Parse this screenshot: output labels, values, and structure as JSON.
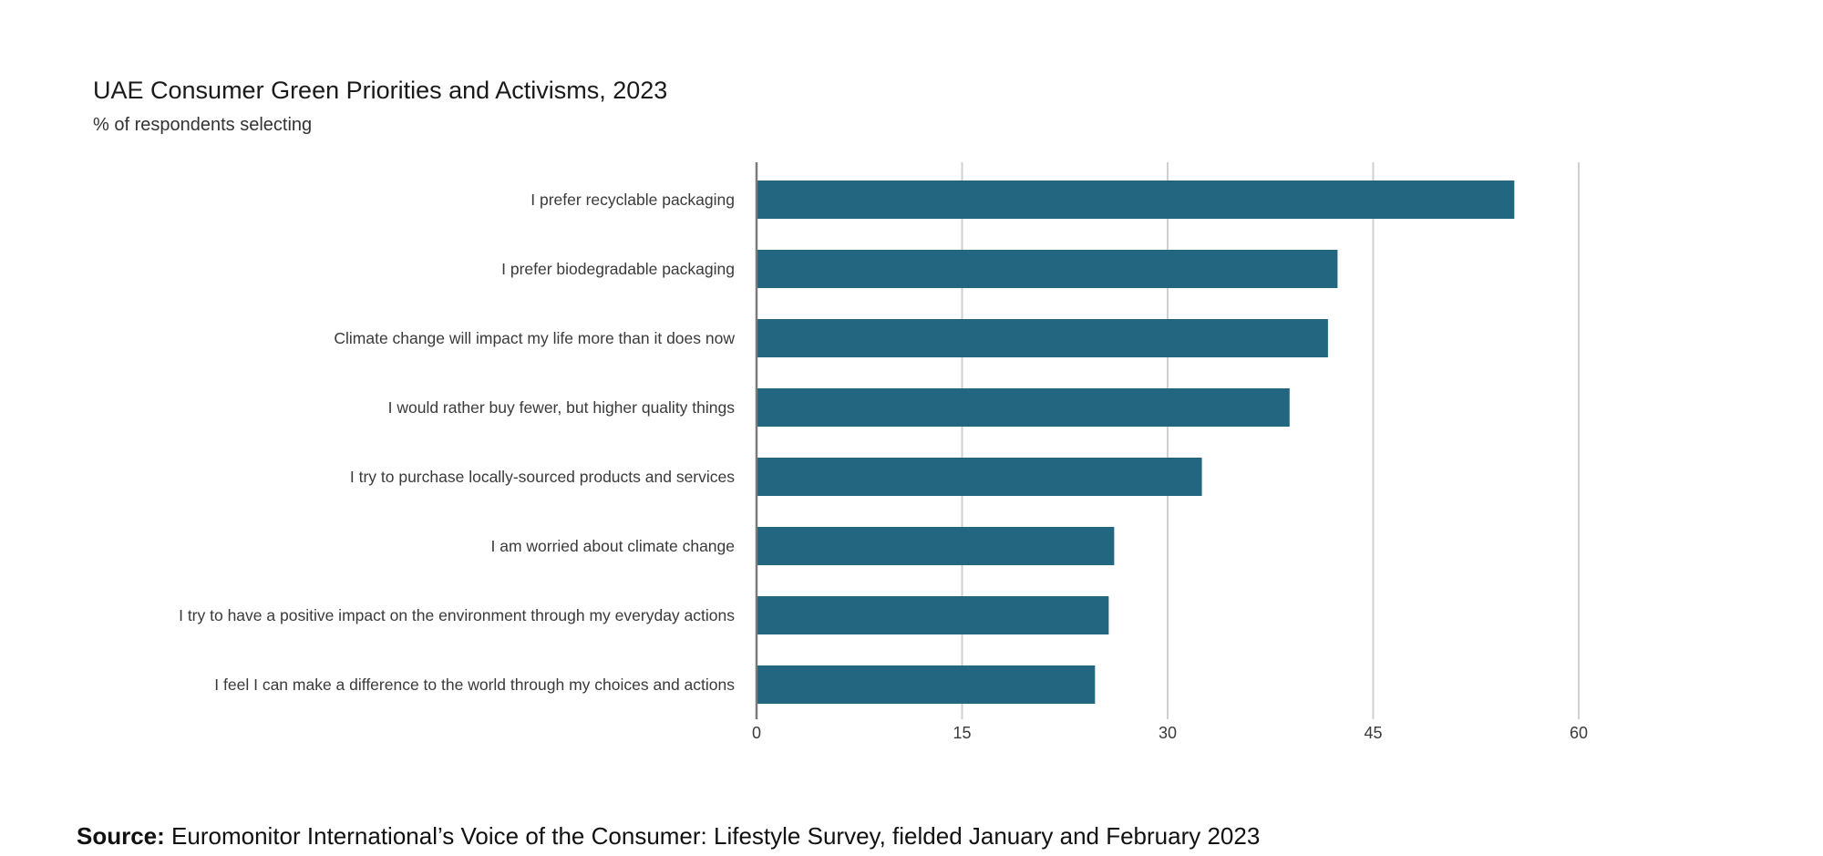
{
  "chart_data": {
    "type": "bar",
    "orientation": "horizontal",
    "title": "UAE Consumer Green Priorities and Activisms, 2023",
    "subtitle": "% of respondents selecting",
    "categories": [
      "I prefer recyclable packaging",
      "I prefer biodegradable packaging",
      "Climate change will impact my life more than it does now",
      "I would rather buy fewer, but higher quality things",
      "I try to purchase locally-sourced products and services",
      "I am worried about climate change",
      "I try to have a positive impact on the environment through my everyday actions",
      "I feel I can make a difference to the world through my choices and actions"
    ],
    "values": [
      55.3,
      42.4,
      41.7,
      38.9,
      32.5,
      26.1,
      25.7,
      24.7
    ],
    "xlim": [
      0,
      60
    ],
    "xticks": [
      "0",
      "15",
      "30",
      "45",
      "60"
    ],
    "tick_values": [
      0,
      15,
      30,
      45,
      60
    ],
    "grid": true,
    "bar_color": "#22667f",
    "grid_color": "#d0d0d0",
    "axis_color": "#7a7a7a"
  },
  "source": {
    "label": "Source:",
    "text": "Euromonitor International’s Voice of the Consumer: Lifestyle Survey, fielded January and February 2023"
  }
}
